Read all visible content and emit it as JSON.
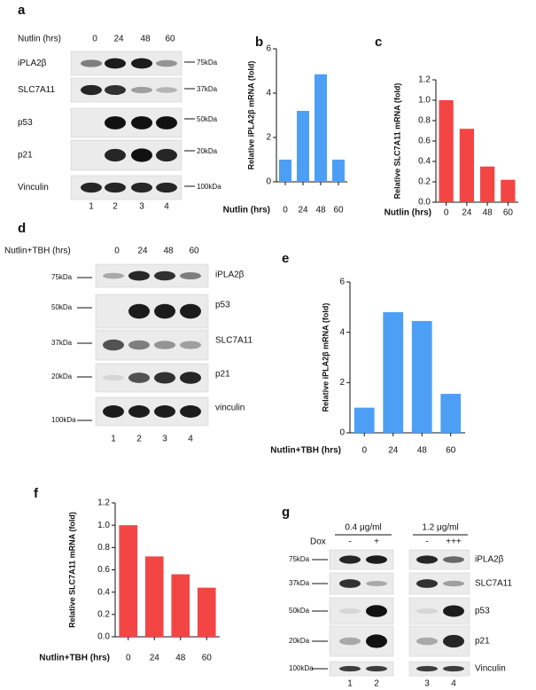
{
  "figure": {
    "a": {
      "label": "a",
      "treatment": "Nutlin (hrs)",
      "lanes": [
        "0",
        "24",
        "48",
        "60"
      ],
      "rows": [
        {
          "protein": "iPLA2β",
          "marker": "75kDa"
        },
        {
          "protein": "SLC7A11",
          "marker": "37kDa"
        },
        {
          "protein": "p53",
          "marker": "50kDa"
        },
        {
          "protein": "p21",
          "marker": "20kDa"
        },
        {
          "protein": "Vinculin",
          "marker": "100kDa"
        }
      ],
      "lane_numbers": [
        "1",
        "2",
        "3",
        "4"
      ]
    },
    "d": {
      "label": "d",
      "treatment": "Nutlin+TBH (hrs)",
      "lanes": [
        "0",
        "24",
        "48",
        "60"
      ],
      "rows": [
        {
          "protein": "iPLA2β",
          "marker": "75kDa"
        },
        {
          "protein": "p53",
          "marker": "50kDa"
        },
        {
          "protein": "SLC7A11",
          "marker": "37kDa"
        },
        {
          "protein": "p21",
          "marker": "20kDa"
        },
        {
          "protein": "vinculin",
          "marker": "100kDa"
        }
      ],
      "lane_numbers": [
        "1",
        "2",
        "3",
        "4"
      ]
    },
    "g": {
      "label": "g",
      "doses": [
        "0.4 μg/ml",
        "1.2 μg/ml"
      ],
      "dox_label": "Dox",
      "dox": [
        "-",
        "+",
        "-",
        "+++"
      ],
      "rows": [
        {
          "protein": "iPLA2β",
          "marker": "75kDa"
        },
        {
          "protein": "SLC7A11",
          "marker": "37kDa"
        },
        {
          "protein": "p53",
          "marker": "50kDa"
        },
        {
          "protein": "p21",
          "marker": "20kDa"
        },
        {
          "protein": "Vinculin",
          "marker": "100kDa"
        }
      ],
      "lane_numbers": [
        "1",
        "2",
        "3",
        "4"
      ]
    }
  },
  "chart_data": [
    {
      "type": "bar",
      "panel": "b",
      "ylabel": "Relative iPLA2β mRNA (fold)",
      "xlabel": "Nutlin (hrs)",
      "categories": [
        "0",
        "24",
        "48",
        "60"
      ],
      "values": [
        1.0,
        3.2,
        4.85,
        1.0
      ],
      "color": "#4d9ff5",
      "ylim": [
        0,
        6
      ],
      "yticks": [
        0,
        2,
        4,
        6
      ]
    },
    {
      "type": "bar",
      "panel": "c",
      "ylabel": "Relative SLC7A11 mRNA (fold)",
      "xlabel": "Nutlin (hrs)",
      "categories": [
        "0",
        "24",
        "48",
        "60"
      ],
      "values": [
        1.0,
        0.72,
        0.35,
        0.22
      ],
      "color": "#f44545",
      "ylim": [
        0,
        1.2
      ],
      "yticks": [
        {
          "value": 0,
          "label": "0.0"
        },
        0.2,
        0.4,
        0.6,
        0.8,
        {
          "value": 1,
          "label": "1.0"
        },
        1.2
      ]
    },
    {
      "type": "bar",
      "panel": "e",
      "ylabel": "Relative iPLA2β mRNA (fold)",
      "xlabel": "Nutlin+TBH (hrs)",
      "categories": [
        "0",
        "24",
        "48",
        "60"
      ],
      "values": [
        1.0,
        4.8,
        4.45,
        1.55
      ],
      "color": "#4d9ff5",
      "ylim": [
        0,
        6
      ],
      "yticks": [
        0,
        2,
        4,
        6
      ]
    },
    {
      "type": "bar",
      "panel": "f",
      "ylabel": "Relative SLC7A11 mRNA (fold)",
      "xlabel": "Nutlin+TBH (hrs)",
      "categories": [
        "0",
        "24",
        "48",
        "60"
      ],
      "values": [
        1.0,
        0.72,
        0.56,
        0.44
      ],
      "color": "#f44545",
      "ylim": [
        0,
        1.2
      ],
      "yticks": [
        {
          "value": 0,
          "label": "0.0"
        },
        0.2,
        0.4,
        0.6,
        0.8,
        {
          "value": 1,
          "label": "1.0"
        },
        1.2
      ]
    }
  ]
}
